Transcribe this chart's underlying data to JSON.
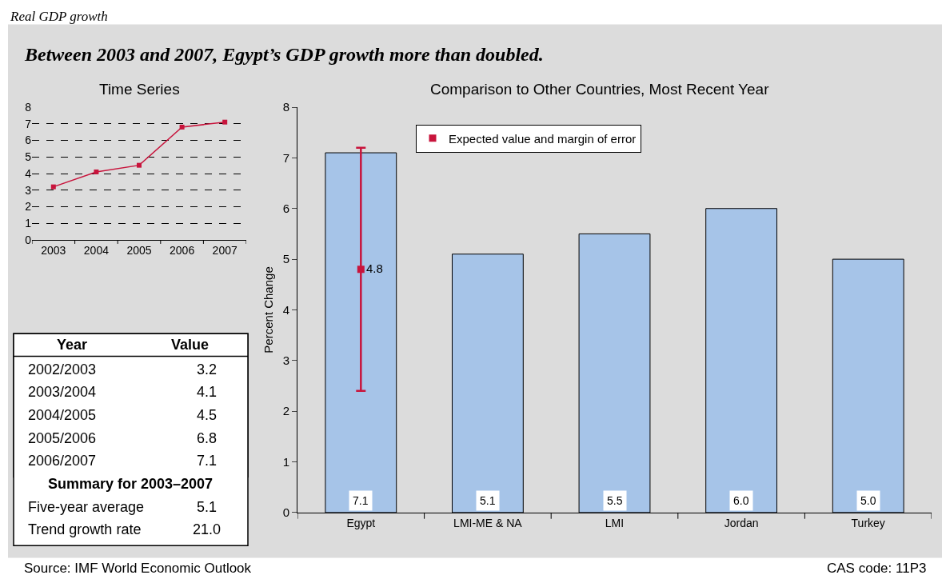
{
  "chart_data": [
    {
      "type": "other",
      "title": "Between 2003 and 2007, Egypt’s GDP growth more than doubled.",
      "annotations": [
        "Real GDP growth",
        "Source: IMF World Economic Outlook",
        "CAS code: 11P3"
      ]
    },
    {
      "type": "line",
      "title": "Time Series",
      "categories": [
        "2003",
        "2004",
        "2005",
        "2006",
        "2007"
      ],
      "values": [
        3.2,
        4.1,
        4.5,
        6.8,
        7.1
      ],
      "color": "#c8143c",
      "marker": "square",
      "line_style": "solid",
      "ylim": [
        0,
        8
      ],
      "yticks": [
        0,
        1,
        2,
        3,
        4,
        5,
        6,
        7,
        8
      ],
      "grid": "y"
    },
    {
      "type": "other",
      "xlabel": "Year",
      "ylabel": "Value",
      "categories": [
        "2002/2003",
        "2003/2004",
        "2004/2005",
        "2005/2006",
        "2006/2007"
      ],
      "value_labels": [
        "3.2",
        "4.1",
        "4.5",
        "6.8",
        "7.1"
      ]
    },
    {
      "type": "other",
      "title": "Summary for 2003–2007",
      "categories": [
        "Five-year average",
        "Trend growth rate"
      ],
      "value_labels": [
        "5.1",
        "21.0"
      ]
    },
    {
      "type": "bar",
      "title": "Comparison to Other Countries, Most Recent Year",
      "ylabel": "Percent Change",
      "categories": [
        "Egypt",
        "LMI-ME & NA",
        "LMI",
        "Jordan",
        "Turkey"
      ],
      "ylim": [
        0,
        8
      ],
      "yticks": [
        0,
        1,
        2,
        3,
        4,
        5,
        6,
        7,
        8
      ],
      "legend": "top",
      "series": [
        {
          "type": "bar",
          "color": "#a6c4e8",
          "values": [
            7.1,
            5.1,
            5.5,
            6.0,
            5.0
          ],
          "value_labels": [
            "7.1",
            "5.1",
            "5.5",
            "6.0",
            "5.0"
          ]
        },
        {
          "type": "scatter",
          "name": "Expected value and margin of error",
          "color": "#c8143c",
          "marker": "square",
          "x": [
            "Egypt"
          ],
          "values": [
            4.8
          ],
          "errors": [
            2.4
          ],
          "value_labels": [
            "4.8"
          ]
        }
      ]
    }
  ]
}
